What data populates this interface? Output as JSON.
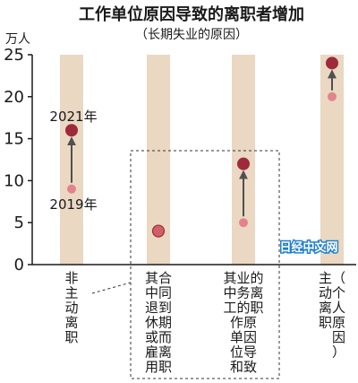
{
  "chart_data": {
    "type": "scatter",
    "title": "工作单位原因导致的离职者增加",
    "subtitle": "（长期失业的原因）",
    "unit": "万人",
    "ylim": [
      0,
      25
    ],
    "yticks": [
      0,
      5,
      10,
      15,
      20,
      25
    ],
    "grid": false,
    "legend": "labels next to first category",
    "series_labels": {
      "y2021": "2021年",
      "y2019": "2019年"
    },
    "categories": [
      {
        "id": "non-voluntary",
        "lines": [
          "非",
          "主",
          "动",
          "离",
          "职"
        ]
      },
      {
        "id": "contract-end",
        "lines": [
          "其合",
          "中同",
          "退到",
          "休期",
          "或而",
          "雇离",
          "用职"
        ]
      },
      {
        "id": "workplace",
        "lines": [
          "其业的",
          "中务离",
          "工的职",
          "作原",
          "单因",
          "位导",
          "和致"
        ]
      },
      {
        "id": "voluntary",
        "lines": [
          "主（",
          "动个",
          "离人",
          "职原",
          "　因",
          "　）"
        ]
      }
    ],
    "series": [
      {
        "name": "2019年",
        "values": [
          9,
          4,
          5,
          20
        ]
      },
      {
        "name": "2021年",
        "values": [
          16,
          4,
          12,
          24
        ]
      }
    ],
    "colors": {
      "band": "#ead8c3",
      "dot_2019": "#e2848c",
      "dot_2021": "#9e2a3c",
      "dot_same": "#d06068",
      "arrow": "#505050",
      "axis": "#1a1a1a",
      "dashed": "#333333"
    },
    "watermark": "日经中文网"
  }
}
